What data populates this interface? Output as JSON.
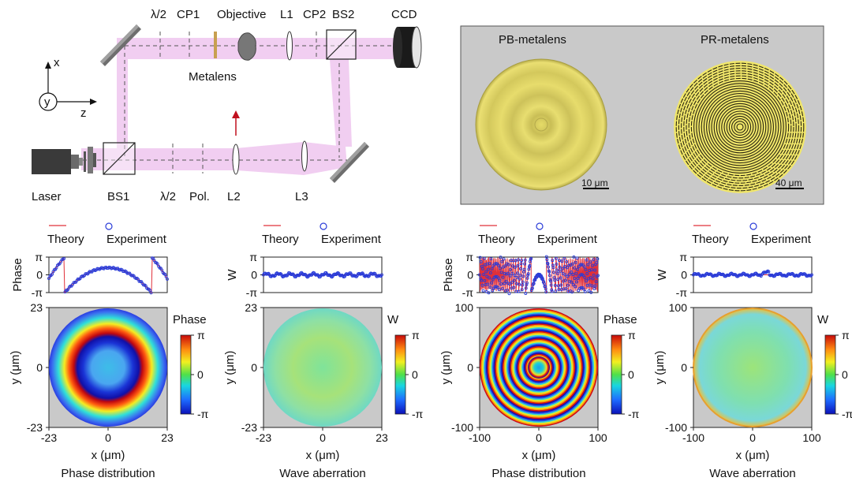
{
  "setup": {
    "labels": {
      "half_wave_1": "λ/2",
      "cp1": "CP1",
      "objective": "Objective",
      "l1": "L1",
      "cp2": "CP2",
      "bs2": "BS2",
      "ccd": "CCD",
      "metalens": "Metalens",
      "laser": "Laser",
      "bs1": "BS1",
      "half_wave_2": "λ/2",
      "pol": "Pol.",
      "l2": "L2",
      "l3": "L3"
    },
    "axes": {
      "x": "x",
      "y": "y",
      "z": "z"
    },
    "colors": {
      "beam": "#efc6ef",
      "arrow": "#c0101e"
    }
  },
  "micrographs": {
    "pb_title": "PB-metalens",
    "pr_title": "PR-metalens",
    "pb_scale": "10 μm",
    "pr_scale": "40 μm",
    "colors": {
      "background": "#c8c8c8",
      "lens": "#e8de6a"
    }
  },
  "panels": [
    {
      "legend_theory": "Theory",
      "legend_experiment": "Experiment",
      "profile_ylabel": "Phase",
      "profile_ticks": [
        "π",
        "0",
        "-π"
      ],
      "map_ylabel": "y (μm)",
      "map_yticks": [
        "23",
        "0",
        "-23"
      ],
      "map_xlabel": "x (μm)",
      "map_xticks": [
        "-23",
        "0",
        "23"
      ],
      "colorbar_title": "Phase",
      "colorbar_ticks": [
        "π",
        "0",
        "-π"
      ],
      "caption": "Phase distribution"
    },
    {
      "legend_theory": "Theory",
      "legend_experiment": "Experiment",
      "profile_ylabel": "W",
      "profile_ticks": [
        "π",
        "0",
        "-π"
      ],
      "map_ylabel": "y (μm)",
      "map_yticks": [
        "23",
        "0",
        "-23"
      ],
      "map_xlabel": "x (μm)",
      "map_xticks": [
        "-23",
        "0",
        "23"
      ],
      "colorbar_title": "W",
      "colorbar_ticks": [
        "π",
        "0",
        "-π"
      ],
      "caption": "Wave aberration"
    },
    {
      "legend_theory": "Theory",
      "legend_experiment": "Experiment",
      "profile_ylabel": "Phase",
      "profile_ticks": [
        "π",
        "0",
        "-π"
      ],
      "map_ylabel": "y (μm)",
      "map_yticks": [
        "100",
        "0",
        "-100"
      ],
      "map_xlabel": "x (μm)",
      "map_xticks": [
        "-100",
        "0",
        "100"
      ],
      "colorbar_title": "Phase",
      "colorbar_ticks": [
        "π",
        "0",
        "-π"
      ],
      "caption": "Phase distribution"
    },
    {
      "legend_theory": "Theory",
      "legend_experiment": "Experiment",
      "profile_ylabel": "W",
      "profile_ticks": [
        "π",
        "0",
        "-π"
      ],
      "map_ylabel": "y (μm)",
      "map_yticks": [
        "100",
        "0",
        "-100"
      ],
      "map_xlabel": "x (μm)",
      "map_xticks": [
        "-100",
        "0",
        "100"
      ],
      "colorbar_title": "W",
      "colorbar_ticks": [
        "π",
        "0",
        "-π"
      ],
      "caption": "Wave aberration"
    }
  ],
  "colors": {
    "theory": "#e0303a",
    "experiment": "#2a3cd8"
  }
}
